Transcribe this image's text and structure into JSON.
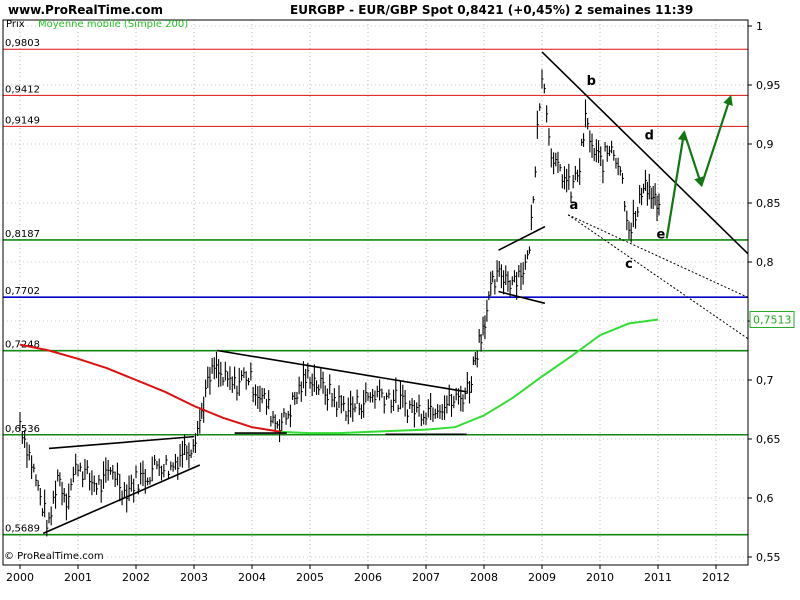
{
  "header": {
    "site": "www.ProRealTime.com",
    "title": "EURGBP - EUR/GBP Spot    0,8421 (+0,45%)    2 semaines  11:39"
  },
  "legend": {
    "prix_label": "Prix",
    "moving_average_label": "Moyenne mobile (Simple 200)"
  },
  "footer": {
    "copyright": "© ProRealTime.com"
  },
  "colors": {
    "price_bars": "#000000",
    "ma_above": "#33dd33",
    "ma_below": "#dd1111",
    "resistance": "#dd1111",
    "support": "#118811",
    "key_level": "#0000cc",
    "projection": "#117711",
    "last_price_box": "#22aa22"
  },
  "chart_data": {
    "type": "line",
    "x_axis": {
      "labels": [
        "2000",
        "2001",
        "2002",
        "2003",
        "2004",
        "2005",
        "2006",
        "2007",
        "2008",
        "2009",
        "2010",
        "2011",
        "2012"
      ],
      "xlim": [
        2000.0,
        2012.8
      ]
    },
    "y_axis": {
      "ticks": [
        "1",
        "0,95",
        "0,9",
        "0,85",
        "0,8",
        "0,75",
        "0,7",
        "0,65",
        "0,6",
        "0,55"
      ],
      "ylim": [
        0.555,
        1.0
      ],
      "position": "right"
    },
    "last_value_label": "0,7513",
    "horizontal_levels": [
      {
        "label": "0,9803",
        "value": 0.9803,
        "color": "red"
      },
      {
        "label": "0,9412",
        "value": 0.9412,
        "color": "red"
      },
      {
        "label": "0,9149",
        "value": 0.9149,
        "color": "red"
      },
      {
        "label": "0,8187",
        "value": 0.8187,
        "color": "green"
      },
      {
        "label": "0,7702",
        "value": 0.7702,
        "color": "blue"
      },
      {
        "label": "0,7248",
        "value": 0.7248,
        "color": "green"
      },
      {
        "label": "0,6536",
        "value": 0.6536,
        "color": "green"
      },
      {
        "label": "0,5689",
        "value": 0.5689,
        "color": "green"
      }
    ],
    "series": [
      {
        "name": "EURGBP",
        "style": "bars",
        "points": [
          [
            2000.0,
            0.665
          ],
          [
            2000.2,
            0.63
          ],
          [
            2000.35,
            0.6
          ],
          [
            2000.5,
            0.575
          ],
          [
            2000.65,
            0.62
          ],
          [
            2000.8,
            0.6
          ],
          [
            2001.0,
            0.63
          ],
          [
            2001.2,
            0.615
          ],
          [
            2001.4,
            0.61
          ],
          [
            2001.6,
            0.625
          ],
          [
            2001.8,
            0.605
          ],
          [
            2002.0,
            0.615
          ],
          [
            2002.2,
            0.62
          ],
          [
            2002.4,
            0.63
          ],
          [
            2002.6,
            0.625
          ],
          [
            2002.8,
            0.64
          ],
          [
            2002.95,
            0.645
          ],
          [
            2003.1,
            0.665
          ],
          [
            2003.2,
            0.69
          ],
          [
            2003.35,
            0.71
          ],
          [
            2003.5,
            0.7
          ],
          [
            2003.7,
            0.695
          ],
          [
            2003.9,
            0.705
          ],
          [
            2004.1,
            0.69
          ],
          [
            2004.25,
            0.68
          ],
          [
            2004.4,
            0.665
          ],
          [
            2004.55,
            0.665
          ],
          [
            2004.7,
            0.68
          ],
          [
            2004.85,
            0.695
          ],
          [
            2005.0,
            0.705
          ],
          [
            2005.15,
            0.695
          ],
          [
            2005.3,
            0.69
          ],
          [
            2005.5,
            0.68
          ],
          [
            2005.7,
            0.675
          ],
          [
            2005.85,
            0.68
          ],
          [
            2006.0,
            0.685
          ],
          [
            2006.2,
            0.69
          ],
          [
            2006.4,
            0.685
          ],
          [
            2006.6,
            0.68
          ],
          [
            2006.8,
            0.675
          ],
          [
            2007.0,
            0.675
          ],
          [
            2007.2,
            0.68
          ],
          [
            2007.4,
            0.68
          ],
          [
            2007.6,
            0.685
          ],
          [
            2007.75,
            0.695
          ],
          [
            2007.85,
            0.72
          ],
          [
            2007.95,
            0.74
          ],
          [
            2008.05,
            0.76
          ],
          [
            2008.15,
            0.78
          ],
          [
            2008.3,
            0.79
          ],
          [
            2008.45,
            0.785
          ],
          [
            2008.6,
            0.79
          ],
          [
            2008.75,
            0.8
          ],
          [
            2008.85,
            0.85
          ],
          [
            2008.92,
            0.92
          ],
          [
            2009.0,
            0.96
          ],
          [
            2009.08,
            0.93
          ],
          [
            2009.2,
            0.88
          ],
          [
            2009.35,
            0.875
          ],
          [
            2009.5,
            0.86
          ],
          [
            2009.65,
            0.88
          ],
          [
            2009.75,
            0.92
          ],
          [
            2009.9,
            0.89
          ],
          [
            2010.05,
            0.885
          ],
          [
            2010.2,
            0.9
          ],
          [
            2010.35,
            0.88
          ],
          [
            2010.5,
            0.83
          ],
          [
            2010.65,
            0.84
          ],
          [
            2010.75,
            0.87
          ],
          [
            2010.85,
            0.86
          ],
          [
            2010.95,
            0.85
          ],
          [
            2011.05,
            0.842
          ]
        ]
      },
      {
        "name": "Moyenne mobile (Simple 200)",
        "style": "line",
        "points": [
          [
            2000.0,
            0.73
          ],
          [
            2000.5,
            0.725
          ],
          [
            2001.0,
            0.718
          ],
          [
            2001.5,
            0.71
          ],
          [
            2002.0,
            0.7
          ],
          [
            2002.5,
            0.69
          ],
          [
            2003.0,
            0.678
          ],
          [
            2003.5,
            0.668
          ],
          [
            2004.0,
            0.66
          ],
          [
            2004.5,
            0.656
          ],
          [
            2005.0,
            0.655
          ],
          [
            2005.5,
            0.655
          ],
          [
            2006.0,
            0.656
          ],
          [
            2006.5,
            0.657
          ],
          [
            2007.0,
            0.658
          ],
          [
            2007.5,
            0.66
          ],
          [
            2008.0,
            0.67
          ],
          [
            2008.5,
            0.685
          ],
          [
            2009.0,
            0.703
          ],
          [
            2009.5,
            0.72
          ],
          [
            2010.0,
            0.738
          ],
          [
            2010.5,
            0.748
          ],
          [
            2011.0,
            0.7513
          ]
        ]
      }
    ],
    "annotations": [
      {
        "text": "a",
        "x": 2009.55,
        "y": 0.845
      },
      {
        "text": "b",
        "x": 2009.85,
        "y": 0.95
      },
      {
        "text": "c",
        "x": 2010.5,
        "y": 0.795
      },
      {
        "text": "d",
        "x": 2010.85,
        "y": 0.904
      },
      {
        "text": "e",
        "x": 2011.05,
        "y": 0.82
      }
    ],
    "trendlines": [
      {
        "from": [
          2000.4,
          0.57
        ],
        "to": [
          2003.1,
          0.628
        ],
        "color": "black",
        "style": "solid"
      },
      {
        "from": [
          2000.5,
          0.642
        ],
        "to": [
          2003.0,
          0.652
        ],
        "color": "black",
        "style": "solid"
      },
      {
        "from": [
          2003.4,
          0.725
        ],
        "to": [
          2007.7,
          0.69
        ],
        "color": "black",
        "style": "solid"
      },
      {
        "from": [
          2003.7,
          0.655
        ],
        "to": [
          2004.6,
          0.655
        ],
        "color": "black",
        "style": "solid"
      },
      {
        "from": [
          2006.3,
          0.654
        ],
        "to": [
          2007.7,
          0.654
        ],
        "color": "black",
        "style": "solid"
      },
      {
        "from": [
          2008.25,
          0.81
        ],
        "to": [
          2009.05,
          0.83
        ],
        "color": "black",
        "style": "solid"
      },
      {
        "from": [
          2008.25,
          0.775
        ],
        "to": [
          2009.05,
          0.765
        ],
        "color": "black",
        "style": "solid"
      },
      {
        "from": [
          2009.0,
          0.978
        ],
        "to": [
          2012.55,
          0.807
        ],
        "color": "black",
        "style": "solid"
      },
      {
        "from": [
          2009.45,
          0.84
        ],
        "to": [
          2012.55,
          0.77
        ],
        "color": "black",
        "style": "dotted"
      },
      {
        "from": [
          2009.45,
          0.84
        ],
        "to": [
          2012.55,
          0.735
        ],
        "color": "black",
        "style": "dotted"
      }
    ],
    "projection_arrows": [
      {
        "from": [
          2011.15,
          0.82
        ],
        "to": [
          2011.45,
          0.91
        ]
      },
      {
        "from": [
          2011.45,
          0.91
        ],
        "to": [
          2011.75,
          0.865
        ]
      },
      {
        "from": [
          2011.75,
          0.865
        ],
        "to": [
          2012.25,
          0.94
        ]
      }
    ]
  }
}
